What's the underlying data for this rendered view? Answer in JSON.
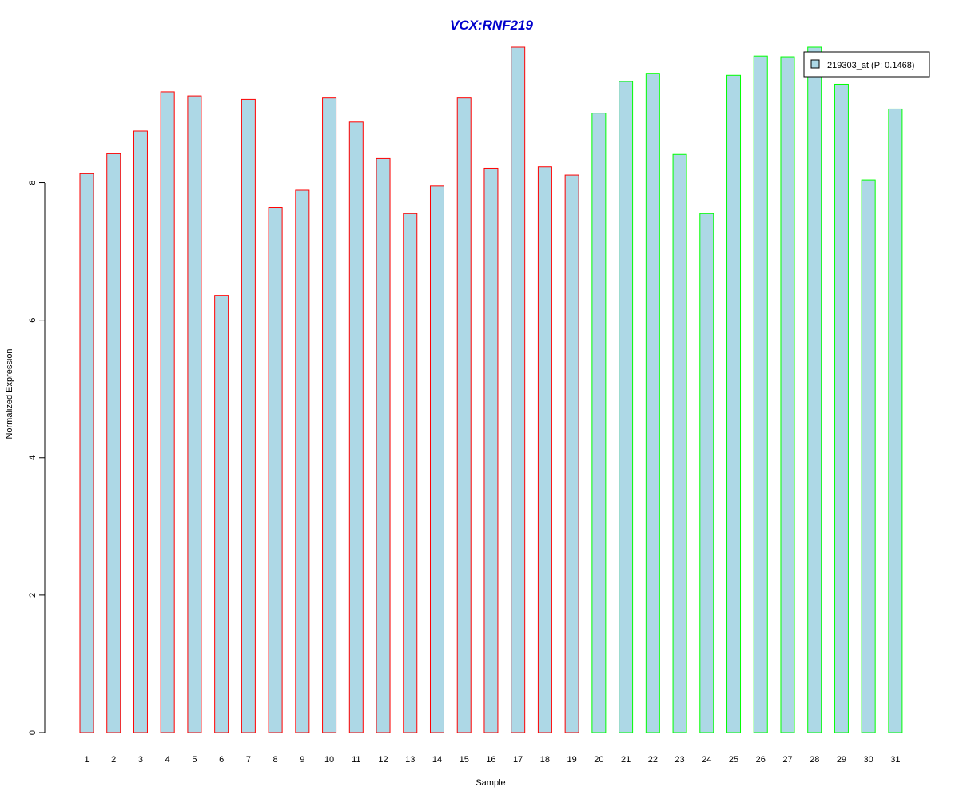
{
  "chart_data": {
    "type": "bar",
    "title": "VCX:RNF219",
    "title_color": "#0000CC",
    "xlabel": "Sample",
    "ylabel": "Normalized Expression",
    "ylim": [
      0,
      10
    ],
    "yticks": [
      0,
      2,
      4,
      6,
      8
    ],
    "grid": false,
    "legend_position": "top-right",
    "fill_color": "#ADD8E6",
    "categories": [
      "1",
      "2",
      "3",
      "4",
      "5",
      "6",
      "7",
      "8",
      "9",
      "10",
      "11",
      "12",
      "13",
      "14",
      "15",
      "16",
      "17",
      "18",
      "19",
      "20",
      "21",
      "22",
      "23",
      "24",
      "25",
      "26",
      "27",
      "28",
      "29",
      "30",
      "31"
    ],
    "values": [
      8.13,
      8.42,
      8.75,
      9.32,
      9.26,
      6.36,
      9.21,
      7.64,
      7.89,
      9.23,
      8.88,
      8.35,
      7.55,
      7.95,
      9.23,
      8.21,
      9.97,
      8.23,
      8.11,
      9.01,
      9.47,
      9.59,
      8.41,
      7.55,
      9.56,
      9.84,
      9.83,
      9.97,
      9.43,
      8.04,
      9.07
    ],
    "border_colors": [
      "#FF0000",
      "#FF0000",
      "#FF0000",
      "#FF0000",
      "#FF0000",
      "#FF0000",
      "#FF0000",
      "#FF0000",
      "#FF0000",
      "#FF0000",
      "#FF0000",
      "#FF0000",
      "#FF0000",
      "#FF0000",
      "#FF0000",
      "#FF0000",
      "#FF0000",
      "#FF0000",
      "#FF0000",
      "#00FF00",
      "#00FF00",
      "#00FF00",
      "#00FF00",
      "#00FF00",
      "#00FF00",
      "#00FF00",
      "#00FF00",
      "#00FF00",
      "#00FF00",
      "#00FF00",
      "#00FF00"
    ],
    "series": [
      {
        "name": "219303_at (P: 0.1468)",
        "color": "#ADD8E6"
      }
    ]
  }
}
